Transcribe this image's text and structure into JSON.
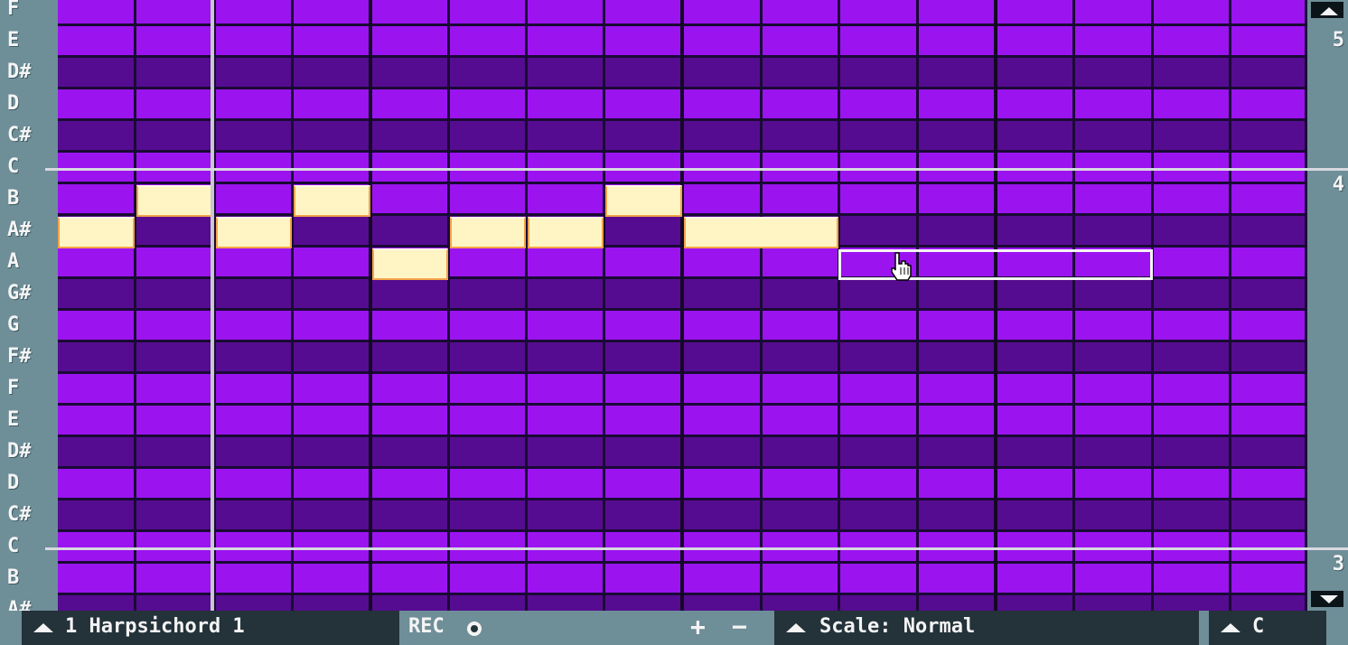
{
  "piano_keys": {
    "labels": [
      "F",
      "E",
      "D#",
      "D",
      "C#",
      "C",
      "B",
      "A#",
      "A",
      "G#",
      "G",
      "F#",
      "F",
      "E",
      "D#",
      "D",
      "C#",
      "C",
      "B",
      "A#"
    ],
    "sharp_rows": [
      2,
      4,
      7,
      9,
      11,
      14,
      16,
      19
    ]
  },
  "octaves": {
    "top": "5",
    "mid": "4",
    "bottom": "3"
  },
  "notes": [
    {
      "row": 7,
      "step": 0,
      "len": 1
    },
    {
      "row": 6,
      "step": 1,
      "len": 1
    },
    {
      "row": 7,
      "step": 2,
      "len": 1
    },
    {
      "row": 6,
      "step": 3,
      "len": 1
    },
    {
      "row": 8,
      "step": 4,
      "len": 1
    },
    {
      "row": 7,
      "step": 5,
      "len": 1
    },
    {
      "row": 7,
      "step": 6,
      "len": 1
    },
    {
      "row": 6,
      "step": 7,
      "len": 1
    },
    {
      "row": 7,
      "step": 8,
      "len": 2
    }
  ],
  "selection": {
    "row": 8,
    "step": 10,
    "len": 4
  },
  "playhead_step": 2,
  "bottom_bar": {
    "instrument_label": "1 Harpsichord 1",
    "rec_label": "REC",
    "plus_label": "+",
    "minus_label": "−",
    "scale_label": "Scale: Normal",
    "key_label": "C"
  },
  "colors": {
    "white_key_cell": "#9b14f0",
    "black_key_cell": "#560c90",
    "note_fill": "#fff5c4",
    "note_border": "#f4a24a",
    "panel_bg": "#24323a",
    "chrome": "#6e8e98"
  }
}
